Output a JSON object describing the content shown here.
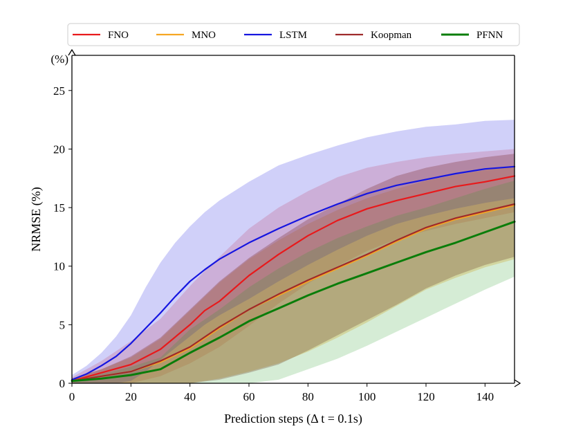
{
  "chart_data": {
    "type": "line",
    "xlabel": "Prediction steps (Δ t = 0.1s)",
    "ylabel": "NRMSE (%)",
    "y_unit_label": "(%)",
    "xlim": [
      0,
      150
    ],
    "ylim": [
      0,
      28
    ],
    "xticks": [
      0,
      20,
      40,
      60,
      80,
      100,
      120,
      140
    ],
    "yticks": [
      0,
      5,
      10,
      15,
      20,
      25
    ],
    "legend": {
      "placement": "top-center",
      "ncol": 5
    },
    "series": [
      {
        "name": "FNO",
        "color": "#e8191b",
        "band_color": "#e8191b",
        "band_opacity": 0.18,
        "x": [
          0,
          10,
          20,
          30,
          40,
          45,
          50,
          60,
          70,
          80,
          90,
          100,
          110,
          120,
          130,
          140,
          150
        ],
        "y": [
          0.2,
          0.9,
          1.6,
          2.9,
          5.0,
          6.2,
          7.0,
          9.2,
          11.0,
          12.6,
          13.9,
          14.9,
          15.6,
          16.2,
          16.8,
          17.2,
          17.7
        ],
        "lower": [
          0.0,
          0.0,
          0.0,
          0.6,
          1.7,
          2.4,
          3.1,
          4.9,
          6.8,
          8.5,
          10.0,
          11.3,
          12.3,
          13.0,
          13.6,
          14.1,
          14.6
        ],
        "upper": [
          0.5,
          1.9,
          3.6,
          5.5,
          8.3,
          9.6,
          10.8,
          13.2,
          15.0,
          16.4,
          17.6,
          18.4,
          18.9,
          19.3,
          19.6,
          19.8,
          20.0
        ]
      },
      {
        "name": "MNO",
        "color": "#f5a623",
        "band_color": "#f5a623",
        "band_opacity": 0.3,
        "x": [
          0,
          10,
          20,
          30,
          40,
          50,
          60,
          70,
          80,
          90,
          100,
          110,
          120,
          130,
          140,
          150
        ],
        "y": [
          0.2,
          0.6,
          1.0,
          1.8,
          3.0,
          4.7,
          6.3,
          7.5,
          8.7,
          9.8,
          10.9,
          12.1,
          13.2,
          14.0,
          14.6,
          15.2
        ],
        "lower": [
          0.0,
          0.0,
          0.0,
          0.0,
          0.0,
          0.4,
          1.0,
          1.7,
          2.7,
          3.9,
          5.2,
          6.6,
          8.0,
          9.0,
          9.9,
          10.6
        ],
        "upper": [
          0.4,
          1.2,
          2.2,
          3.8,
          6.2,
          8.6,
          10.6,
          12.2,
          13.6,
          14.8,
          15.8,
          16.6,
          17.3,
          17.8,
          18.2,
          18.6
        ]
      },
      {
        "name": "LSTM",
        "color": "#1515e0",
        "band_color": "#1515e0",
        "band_opacity": 0.2,
        "x": [
          0,
          5,
          10,
          15,
          20,
          25,
          30,
          35,
          40,
          45,
          50,
          60,
          70,
          80,
          90,
          100,
          110,
          120,
          130,
          140,
          150
        ],
        "y": [
          0.3,
          0.8,
          1.5,
          2.3,
          3.4,
          4.7,
          6.0,
          7.4,
          8.7,
          9.7,
          10.6,
          12.0,
          13.2,
          14.3,
          15.3,
          16.2,
          16.9,
          17.4,
          17.9,
          18.3,
          18.5
        ],
        "lower": [
          0.0,
          0.0,
          0.0,
          0.0,
          0.2,
          1.0,
          2.0,
          3.0,
          4.0,
          5.0,
          5.8,
          7.2,
          8.7,
          10.1,
          11.4,
          12.6,
          13.6,
          14.3,
          14.9,
          15.4,
          15.8
        ],
        "upper": [
          0.7,
          1.5,
          2.6,
          4.0,
          5.8,
          8.2,
          10.3,
          12.0,
          13.4,
          14.6,
          15.6,
          17.2,
          18.6,
          19.5,
          20.3,
          21.0,
          21.5,
          21.9,
          22.1,
          22.4,
          22.5
        ]
      },
      {
        "name": "Koopman",
        "color": "#9e2a2b",
        "band_color": "#7a2a2a",
        "band_opacity": 0.3,
        "x": [
          0,
          10,
          20,
          30,
          40,
          50,
          60,
          70,
          80,
          90,
          100,
          110,
          120,
          130,
          140,
          150
        ],
        "y": [
          0.2,
          0.6,
          1.0,
          1.9,
          3.1,
          4.8,
          6.3,
          7.6,
          8.8,
          9.9,
          11.0,
          12.2,
          13.3,
          14.1,
          14.7,
          15.3
        ],
        "lower": [
          0.0,
          0.0,
          0.0,
          0.0,
          0.0,
          0.3,
          0.9,
          1.6,
          2.8,
          4.1,
          5.4,
          6.7,
          8.1,
          9.2,
          10.1,
          10.8
        ],
        "upper": [
          0.4,
          1.2,
          2.3,
          3.9,
          6.3,
          8.7,
          10.7,
          12.4,
          14.0,
          15.3,
          16.6,
          17.7,
          18.4,
          18.9,
          19.3,
          19.6
        ]
      },
      {
        "name": "PFNN",
        "color": "#0a7d0a",
        "band_color": "#2ca02c",
        "band_opacity": 0.2,
        "x": [
          0,
          10,
          20,
          30,
          40,
          50,
          60,
          70,
          80,
          90,
          100,
          110,
          120,
          130,
          140,
          150
        ],
        "y": [
          0.2,
          0.4,
          0.7,
          1.2,
          2.6,
          3.9,
          5.3,
          6.4,
          7.5,
          8.5,
          9.4,
          10.3,
          11.2,
          12.0,
          12.9,
          13.8
        ],
        "lower": [
          0.0,
          0.0,
          0.0,
          0.0,
          0.0,
          0.0,
          0.0,
          0.3,
          1.2,
          2.1,
          3.2,
          4.4,
          5.6,
          6.8,
          8.0,
          9.1
        ],
        "upper": [
          0.3,
          0.8,
          1.4,
          2.2,
          4.6,
          6.3,
          8.2,
          9.8,
          11.2,
          12.4,
          13.4,
          14.3,
          15.0,
          15.8,
          16.6,
          17.3
        ]
      }
    ]
  }
}
